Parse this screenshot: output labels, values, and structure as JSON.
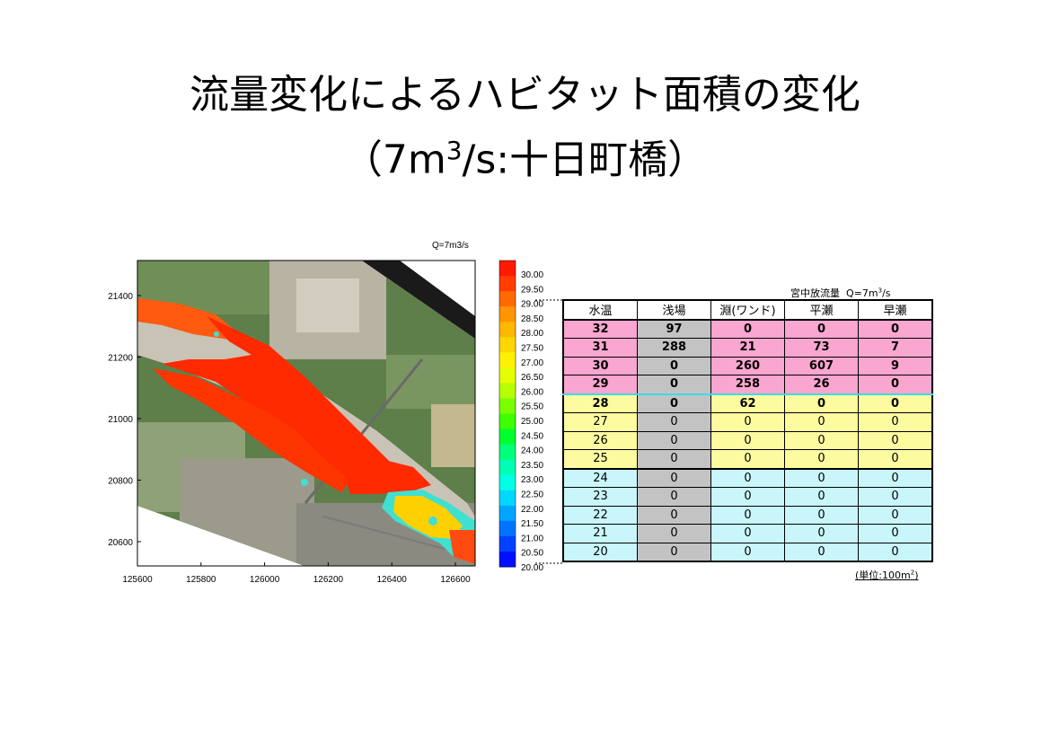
{
  "title_line1": "流量変化によるハビタット面積の変化",
  "title_line2_pre": "（7m",
  "title_line2_sup": "3",
  "title_line2_post": "/s:十日町橋）",
  "map": {
    "label": "Q=7m3/s",
    "x_ticks": [
      "125600",
      "125800",
      "126000",
      "126200",
      "126400",
      "126600"
    ],
    "y_ticks": [
      "21400",
      "21200",
      "21000",
      "20800",
      "20600"
    ]
  },
  "chart_data": {
    "type": "heatmap",
    "x_ticks": [
      125600,
      125800,
      126000,
      126200,
      126400,
      126600
    ],
    "y_ticks": [
      21400,
      21200,
      21000,
      20800,
      20600
    ],
    "colorbar_min": 20.0,
    "colorbar_max": 30.0,
    "colorbar_labels": [
      "30.00",
      "29.50",
      "29.00",
      "28.50",
      "28.00",
      "27.50",
      "27.00",
      "26.50",
      "26.00",
      "25.50",
      "25.00",
      "24.50",
      "24.00",
      "23.50",
      "23.00",
      "22.50",
      "22.00",
      "21.50",
      "21.00",
      "20.50",
      "20.00"
    ],
    "colorbar_colors": [
      "#ff1a00",
      "#ff3d00",
      "#ff6a00",
      "#ff9500",
      "#ffb800",
      "#ffd600",
      "#fff200",
      "#e6ff00",
      "#b7ff00",
      "#7bff00",
      "#3dff00",
      "#00ff2e",
      "#00ff7a",
      "#00ffb5",
      "#00ffe6",
      "#00d8ff",
      "#00a6ff",
      "#0074ff",
      "#0042ff",
      "#0010ff"
    ]
  },
  "table": {
    "flow_label": "宮中放流量",
    "flow_value_pre": "Q=7m",
    "flow_value_sup": "3",
    "flow_value_post": "/s",
    "unit_pre": "(単位:100m",
    "unit_sup": "2",
    "unit_post": ")",
    "headers": [
      "水温",
      "浅場",
      "淵(ワンド)",
      "平瀬",
      "早瀬"
    ],
    "rows": [
      {
        "temp": "32",
        "values": [
          "97",
          "0",
          "0",
          "0"
        ]
      },
      {
        "temp": "31",
        "values": [
          "288",
          "21",
          "73",
          "7"
        ]
      },
      {
        "temp": "30",
        "values": [
          "0",
          "260",
          "607",
          "9"
        ]
      },
      {
        "temp": "29",
        "values": [
          "0",
          "258",
          "26",
          "0"
        ]
      },
      {
        "temp": "28",
        "values": [
          "0",
          "62",
          "0",
          "0"
        ]
      },
      {
        "temp": "27",
        "values": [
          "0",
          "0",
          "0",
          "0"
        ]
      },
      {
        "temp": "26",
        "values": [
          "0",
          "0",
          "0",
          "0"
        ]
      },
      {
        "temp": "25",
        "values": [
          "0",
          "0",
          "0",
          "0"
        ]
      },
      {
        "temp": "24",
        "values": [
          "0",
          "0",
          "0",
          "0"
        ]
      },
      {
        "temp": "23",
        "values": [
          "0",
          "0",
          "0",
          "0"
        ]
      },
      {
        "temp": "22",
        "values": [
          "0",
          "0",
          "0",
          "0"
        ]
      },
      {
        "temp": "21",
        "values": [
          "0",
          "0",
          "0",
          "0"
        ]
      },
      {
        "temp": "20",
        "values": [
          "0",
          "0",
          "0",
          "0"
        ]
      }
    ]
  }
}
